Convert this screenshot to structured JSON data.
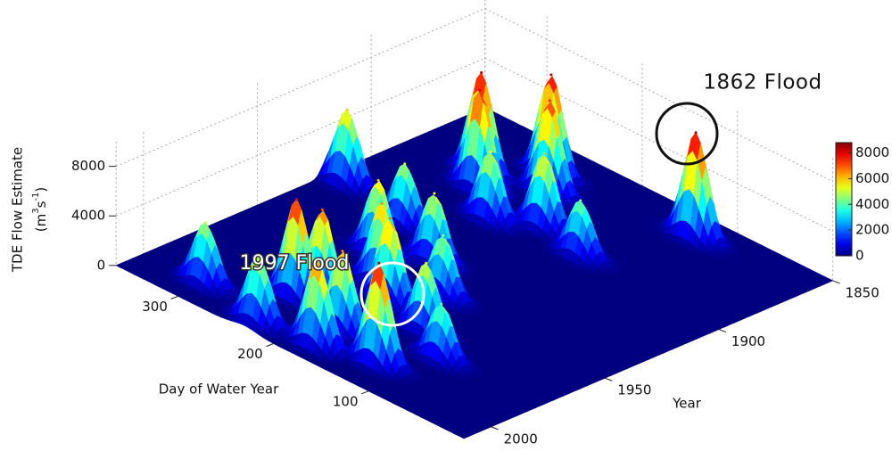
{
  "chart_data": {
    "type": "surface3d",
    "x_label": "Day of Water Year",
    "y_label": "Year",
    "z_label": "TDE Flow Estimate",
    "z_unit": {
      "open": "(m",
      "exp1": "3",
      "mid": "s",
      "exp2": "-1",
      "close": ")"
    },
    "xlim": [
      0,
      365
    ],
    "xticks": [
      100,
      200,
      300
    ],
    "ylim": [
      1850,
      2012
    ],
    "yticks": [
      1850,
      1900,
      1950,
      2000
    ],
    "zlim": [
      0,
      10000
    ],
    "zticks": [
      0,
      4000,
      8000
    ],
    "grid": true,
    "colorbar": {
      "colormap": "jet",
      "lim": [
        0,
        8800
      ],
      "ticks": [
        0,
        2000,
        4000,
        6000,
        8000
      ]
    },
    "peaks": {
      "year": [
        1862,
        1867,
        1876,
        1883,
        1890,
        1893,
        1902,
        1898,
        1919,
        1925,
        1935,
        1945,
        1950,
        1958,
        1965,
        1970,
        1978,
        1985,
        1990,
        1997,
        2003,
        2006,
        1980,
        2000
      ],
      "day": [
        115,
        255,
        235,
        290,
        275,
        200,
        235,
        150,
        345,
        270,
        215,
        250,
        170,
        215,
        190,
        140,
        230,
        240,
        180,
        125,
        175,
        230,
        100,
        300
      ],
      "flow": [
        8500,
        8200,
        7600,
        8300,
        8000,
        6000,
        5500,
        4500,
        6000,
        5000,
        5500,
        6000,
        5000,
        6500,
        6800,
        5500,
        7000,
        8000,
        6500,
        8200,
        7000,
        5500,
        4500,
        5000
      ]
    },
    "annotations": [
      "1862 Flood",
      "1997 Flood"
    ]
  }
}
